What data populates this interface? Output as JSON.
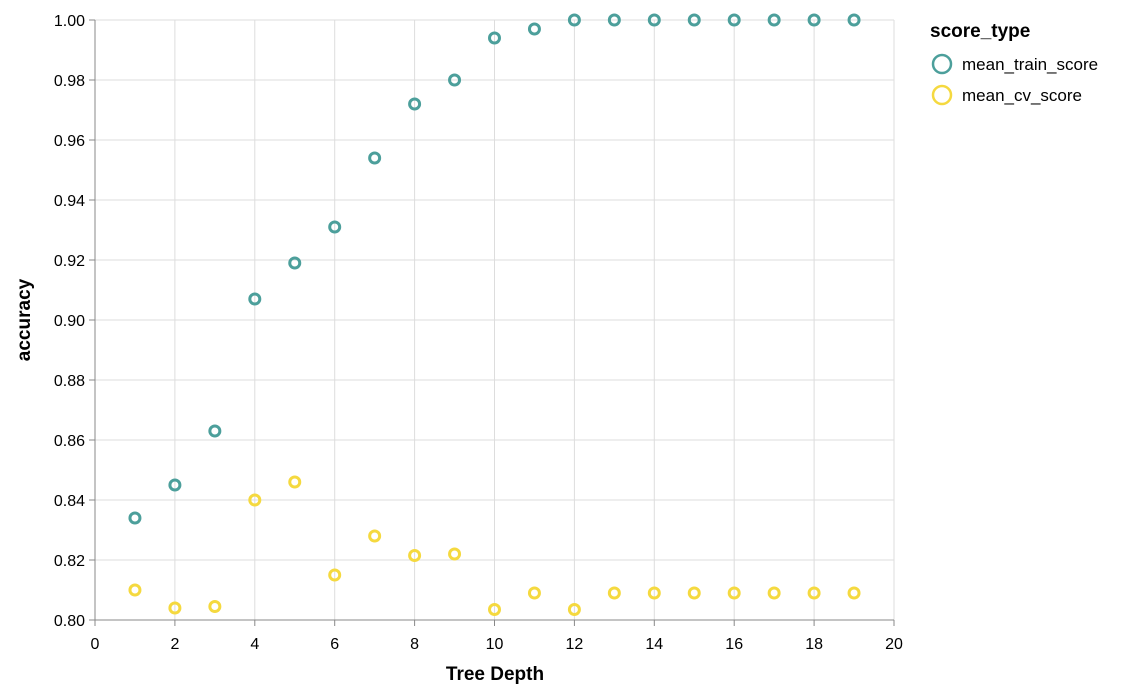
{
  "chart_data": {
    "type": "scatter",
    "xlabel": "Tree Depth",
    "ylabel": "accuracy",
    "xlim": [
      0,
      20
    ],
    "ylim": [
      0.8,
      1.0
    ],
    "x_ticks": [
      "0",
      "2",
      "4",
      "6",
      "8",
      "10",
      "12",
      "14",
      "16",
      "18",
      "20"
    ],
    "y_ticks": [
      "0.80",
      "0.82",
      "0.84",
      "0.86",
      "0.88",
      "0.90",
      "0.92",
      "0.94",
      "0.96",
      "0.98",
      "1.00"
    ],
    "grid": true,
    "legend": {
      "title": "score_type",
      "placement": "top-right"
    },
    "series": [
      {
        "name": "mean_train_score",
        "color": "#4c9f9b",
        "x": [
          1,
          2,
          3,
          4,
          5,
          6,
          7,
          8,
          9,
          10,
          11,
          12,
          13,
          14,
          15,
          16,
          17,
          18,
          19
        ],
        "y": [
          0.834,
          0.845,
          0.863,
          0.907,
          0.919,
          0.931,
          0.954,
          0.972,
          0.98,
          0.994,
          0.997,
          1.0,
          1.0,
          1.0,
          1.0,
          1.0,
          1.0,
          1.0,
          1.0
        ]
      },
      {
        "name": "mean_cv_score",
        "color": "#f5d93f",
        "x": [
          1,
          2,
          3,
          4,
          5,
          6,
          7,
          8,
          9,
          10,
          11,
          12,
          13,
          14,
          15,
          16,
          17,
          18,
          19
        ],
        "y": [
          0.81,
          0.804,
          0.8045,
          0.84,
          0.846,
          0.815,
          0.828,
          0.8215,
          0.822,
          0.8035,
          0.809,
          0.8035,
          0.809,
          0.809,
          0.809,
          0.809,
          0.809,
          0.809,
          0.809
        ]
      }
    ]
  }
}
